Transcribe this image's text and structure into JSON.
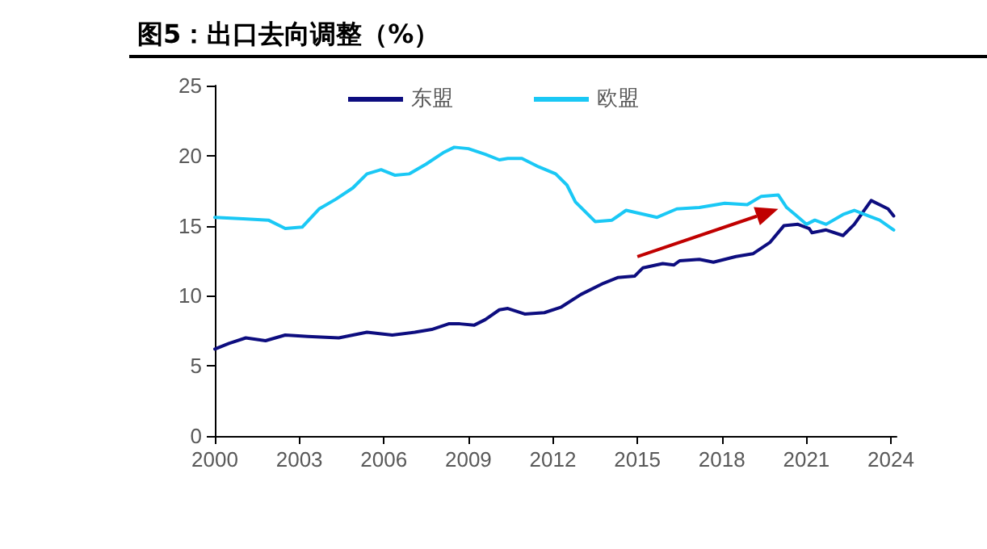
{
  "chart_data": {
    "type": "line",
    "title": "图5：出口去向调整（%）",
    "xlim": [
      2000,
      2024.2
    ],
    "xticks": [
      2000,
      2003,
      2006,
      2009,
      2012,
      2015,
      2018,
      2021,
      2024
    ],
    "ylim": [
      0,
      25
    ],
    "yticks": [
      0,
      5,
      10,
      15,
      20,
      25
    ],
    "grid": false,
    "legend": "top",
    "marker": "none",
    "line_style": "solid",
    "series": [
      {
        "name": "东盟",
        "color": "#0d0d7f",
        "x": [
          2000,
          2000.5,
          2001.1,
          2001.8,
          2002.5,
          2003.3,
          2004.4,
          2005.4,
          2006.3,
          2007.1,
          2007.7,
          2008.3,
          2008.7,
          2009.2,
          2009.6,
          2010.1,
          2010.4,
          2011.0,
          2011.7,
          2012.3,
          2013.0,
          2013.8,
          2014.3,
          2014.9,
          2015.2,
          2015.9,
          2016.3,
          2016.5,
          2017.2,
          2017.7,
          2018.5,
          2019.1,
          2019.7,
          2020.2,
          2020.7,
          2021.1,
          2021.2,
          2021.7,
          2022.3,
          2022.7,
          2023.3,
          2023.9,
          2024.1
        ],
        "values": [
          6.2,
          6.6,
          7.0,
          6.8,
          7.2,
          7.1,
          7.0,
          7.4,
          7.2,
          7.4,
          7.6,
          8.0,
          8.0,
          7.9,
          8.3,
          9.0,
          9.1,
          8.7,
          8.8,
          9.2,
          10.1,
          10.9,
          11.3,
          11.4,
          12.0,
          12.3,
          12.2,
          12.5,
          12.6,
          12.4,
          12.8,
          13.0,
          13.8,
          15.0,
          15.1,
          14.8,
          14.5,
          14.7,
          14.3,
          15.1,
          16.8,
          16.2,
          15.7
        ]
      },
      {
        "name": "欧盟",
        "color": "#1ac8f5",
        "x": [
          2000,
          2001.0,
          2001.9,
          2002.5,
          2003.1,
          2003.7,
          2004.3,
          2004.9,
          2005.4,
          2005.9,
          2006.4,
          2006.9,
          2007.5,
          2008.1,
          2008.5,
          2009.0,
          2009.6,
          2010.1,
          2010.4,
          2010.9,
          2011.5,
          2012.1,
          2012.5,
          2012.8,
          2013.5,
          2014.1,
          2014.6,
          2015.7,
          2016.4,
          2017.2,
          2018.1,
          2018.9,
          2019.4,
          2020.0,
          2020.3,
          2020.6,
          2021.0,
          2021.3,
          2021.7,
          2022.3,
          2022.7,
          2023.2,
          2023.6,
          2024.1
        ],
        "values": [
          15.6,
          15.5,
          15.4,
          14.8,
          14.9,
          16.2,
          16.9,
          17.7,
          18.7,
          19.0,
          18.6,
          18.7,
          19.4,
          20.2,
          20.6,
          20.5,
          20.1,
          19.7,
          19.8,
          19.8,
          19.2,
          18.7,
          17.9,
          16.7,
          15.3,
          15.4,
          16.1,
          15.6,
          16.2,
          16.3,
          16.6,
          16.5,
          17.1,
          17.2,
          16.3,
          15.8,
          15.1,
          15.4,
          15.1,
          15.8,
          16.1,
          15.7,
          15.4,
          14.7
        ]
      }
    ]
  }
}
